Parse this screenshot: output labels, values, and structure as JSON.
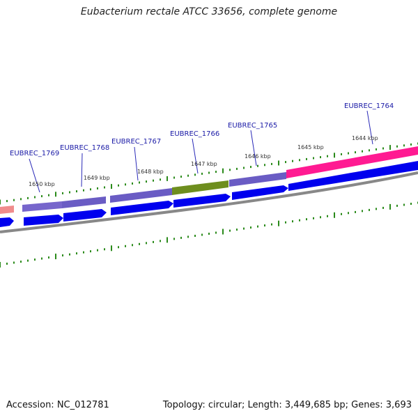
{
  "title": "Eubacterium rectale ATCC 33656, complete genome",
  "accession_label": "Accession: NC_012781",
  "meta_label": "Topology: circular; Length: 3,449,685 bp; Genes: 3,693",
  "colors": {
    "gene_arrow": "#0000ee",
    "cds_purple": "#6f5fc8",
    "cds_olive": "#6e8e1e",
    "cds_pink": "#ff1a92",
    "cds_salmon": "#f08c8c",
    "backbone": "#888888",
    "ticks": "#2a8a1a"
  },
  "gene_labels": [
    {
      "name": "EUBREC_1769"
    },
    {
      "name": "EUBREC_1768"
    },
    {
      "name": "EUBREC_1767"
    },
    {
      "name": "EUBREC_1766"
    },
    {
      "name": "EUBREC_1765"
    },
    {
      "name": "EUBREC_1764"
    }
  ],
  "kbp_labels": [
    "1650 kbp",
    "1649 kbp",
    "1648 kbp",
    "1647 kbp",
    "1646 kbp",
    "1645 kbp",
    "1644 kbp"
  ]
}
